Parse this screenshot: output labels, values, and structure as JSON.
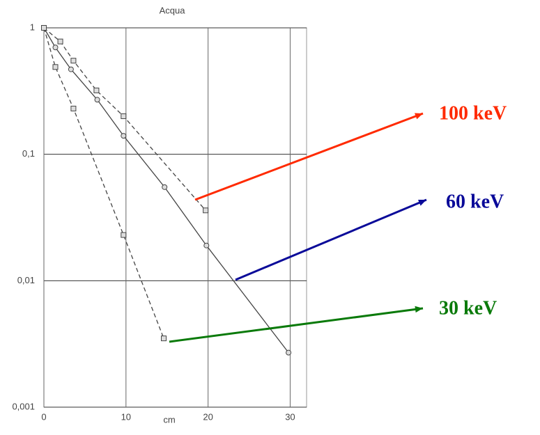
{
  "chart_data": {
    "type": "line",
    "title": "Acqua",
    "x_label": "cm",
    "log_y": true,
    "grid": true,
    "xlim": [
      0,
      32
    ],
    "xticks": [
      0,
      10,
      20,
      30
    ],
    "ylim": [
      0.001,
      1
    ],
    "yticks": [
      {
        "value": 0.001,
        "label": "0,001"
      },
      {
        "value": 0.01,
        "label": "0,01"
      },
      {
        "value": 0.1,
        "label": "0,1"
      },
      1
    ],
    "series": [
      {
        "name": "100 keV",
        "label_color": "#ff2a00",
        "color": "#444",
        "marker": "square",
        "dashed": true,
        "x": [
          0,
          2.0,
          3.6,
          6.4,
          9.7,
          19.7
        ],
        "values": [
          1,
          0.78,
          0.55,
          0.32,
          0.2,
          0.036
        ]
      },
      {
        "name": "60 keV",
        "label_color": "#0a0a99",
        "color": "#444",
        "marker": "circle",
        "dashed": false,
        "x": [
          0,
          1.4,
          3.3,
          6.5,
          9.7,
          14.7,
          19.8,
          29.8
        ],
        "values": [
          1,
          0.7,
          0.47,
          0.27,
          0.14,
          0.055,
          0.019,
          0.0027
        ]
      },
      {
        "name": "30 keV",
        "label_color": "#0a7a0a",
        "color": "#444",
        "marker": "square",
        "dashed": true,
        "x": [
          0,
          1.4,
          3.6,
          9.7,
          14.6
        ],
        "values": [
          1,
          0.49,
          0.23,
          0.023,
          0.0035
        ]
      }
    ]
  }
}
